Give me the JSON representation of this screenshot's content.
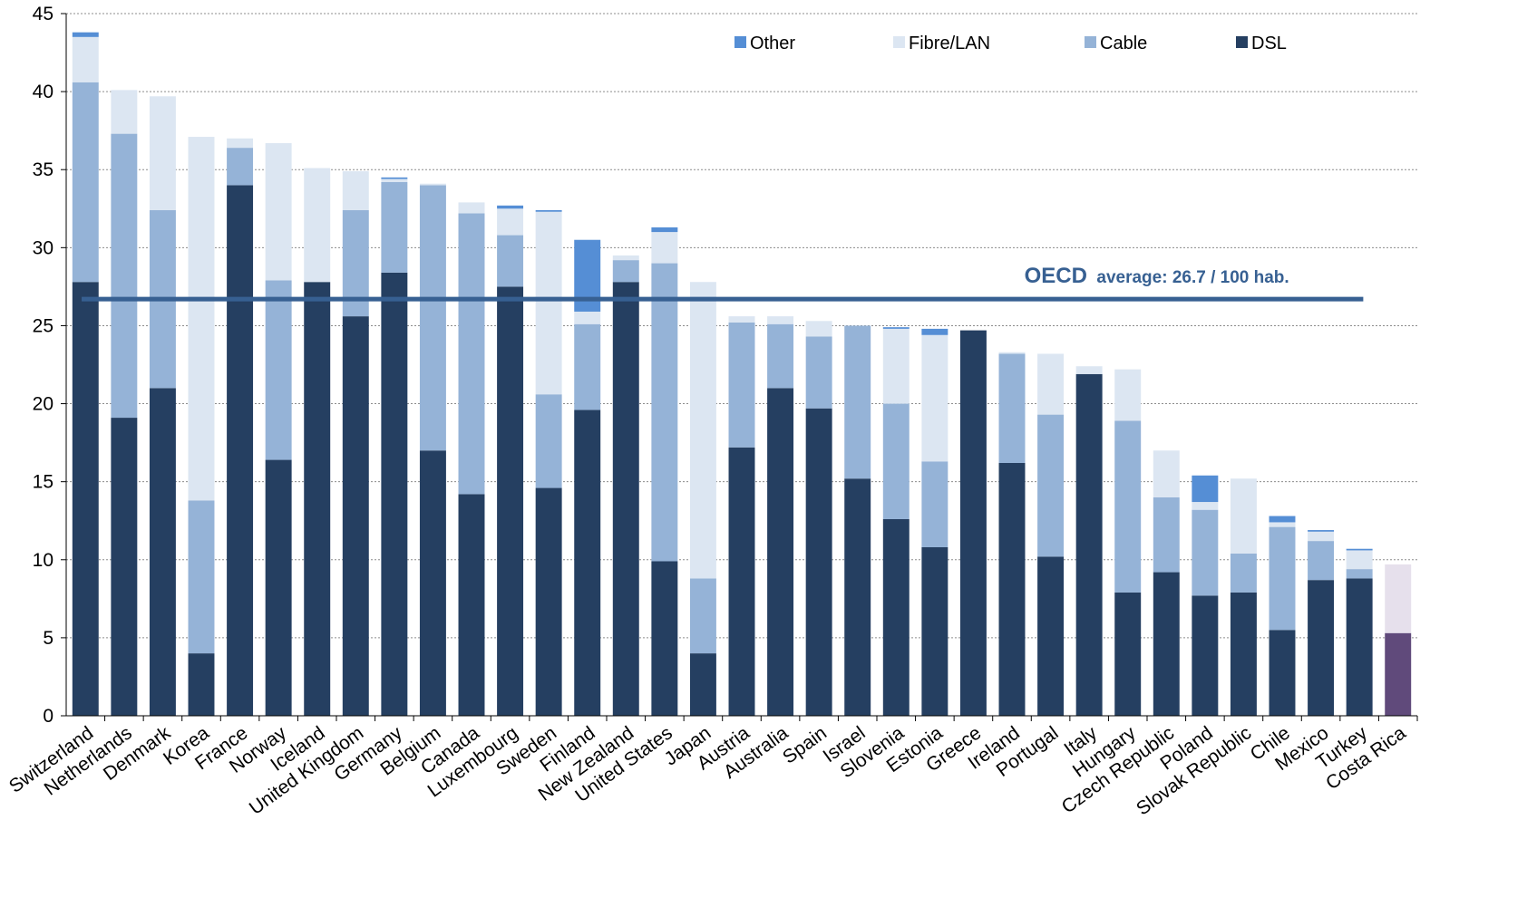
{
  "chart_data": {
    "type": "bar",
    "stacked": true,
    "ylim": [
      0,
      45
    ],
    "yticks": [
      0,
      5,
      10,
      15,
      20,
      25,
      30,
      35,
      40,
      45
    ],
    "grid": true,
    "legend_position": "top",
    "categories": [
      "Switzerland",
      "Netherlands",
      "Denmark",
      "Korea",
      "France",
      "Norway",
      "Iceland",
      "United Kingdom",
      "Germany",
      "Belgium",
      "Canada",
      "Luxembourg",
      "Sweden",
      "Finland",
      "New Zealand",
      "United States",
      "Japan",
      "Austria",
      "Australia",
      "Spain",
      "Israel",
      "Slovenia",
      "Estonia",
      "Greece",
      "Ireland",
      "Portugal",
      "Italy",
      "Hungary",
      "Czech Republic",
      "Poland",
      "Slovak Republic",
      "Chile",
      "Mexico",
      "Turkey",
      "Costa Rica"
    ],
    "series": [
      {
        "name": "DSL",
        "color": "#253f61",
        "values": [
          27.8,
          19.1,
          21.0,
          4.0,
          34.0,
          16.4,
          27.8,
          25.6,
          28.4,
          17.0,
          14.2,
          27.5,
          14.6,
          19.6,
          27.8,
          9.9,
          4.0,
          17.2,
          21.0,
          19.7,
          15.2,
          12.6,
          10.8,
          24.7,
          16.2,
          10.2,
          21.9,
          7.9,
          9.2,
          7.7,
          7.9,
          5.5,
          8.7,
          8.8,
          5.3
        ]
      },
      {
        "name": "Cable",
        "color": "#95b3d7",
        "values": [
          12.8,
          18.2,
          11.4,
          9.8,
          2.4,
          11.5,
          0.0,
          6.8,
          5.8,
          17.0,
          18.0,
          3.3,
          6.0,
          5.5,
          1.4,
          19.1,
          4.8,
          8.0,
          4.1,
          4.6,
          9.8,
          7.4,
          5.5,
          0.0,
          7.0,
          9.1,
          0.0,
          11.0,
          4.8,
          5.5,
          2.5,
          6.6,
          2.5,
          0.6,
          0.0
        ]
      },
      {
        "name": "Fibre/LAN",
        "color": "#dce6f2",
        "values": [
          2.9,
          2.8,
          7.3,
          23.3,
          0.6,
          8.8,
          7.3,
          2.5,
          0.2,
          0.1,
          0.7,
          1.7,
          11.7,
          0.8,
          0.3,
          2.0,
          19.0,
          0.4,
          0.5,
          1.0,
          0.0,
          4.8,
          8.1,
          0.0,
          0.1,
          3.9,
          0.5,
          3.3,
          3.0,
          0.5,
          4.8,
          0.3,
          0.6,
          1.2,
          4.4
        ]
      },
      {
        "name": "Other",
        "color": "#558ed5",
        "values": [
          0.3,
          0.0,
          0.0,
          0.0,
          0.0,
          0.0,
          0.0,
          0.0,
          0.1,
          0.0,
          0.0,
          0.2,
          0.1,
          4.6,
          0.0,
          0.3,
          0.0,
          0.0,
          0.0,
          0.0,
          0.0,
          0.1,
          0.4,
          0.0,
          0.0,
          0.0,
          0.0,
          0.0,
          0.0,
          1.7,
          0.0,
          0.4,
          0.1,
          0.1,
          0.0
        ]
      }
    ],
    "highlight": {
      "category": "Costa Rica",
      "colors": [
        "#604a7b",
        "#e6e0ec",
        "#e6e0ec",
        "#e6e0ec"
      ]
    },
    "legend": [
      "Other",
      "Fibre/LAN",
      "Cable",
      "DSL"
    ],
    "reference_line": {
      "value": 26.7,
      "color": "#376092",
      "label_main": "OECD",
      "label_rest": "average: 26.7 / 100 hab."
    }
  }
}
